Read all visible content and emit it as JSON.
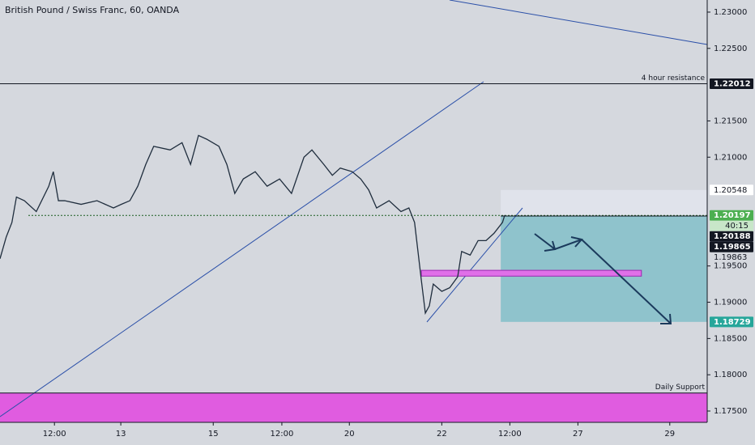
{
  "chart_data": {
    "type": "line",
    "title": "British Pound / Swiss Franc, 60, OANDA",
    "xlim": [
      0,
      124.7
    ],
    "xticks": [
      {
        "value": 9.6,
        "label": "12:00"
      },
      {
        "value": 21.3,
        "label": "13"
      },
      {
        "value": 37.6,
        "label": "15"
      },
      {
        "value": 49.7,
        "label": "12:00"
      },
      {
        "value": 61.6,
        "label": "20"
      },
      {
        "value": 77.9,
        "label": "22"
      },
      {
        "value": 89.9,
        "label": "12:00"
      },
      {
        "value": 101.9,
        "label": "27"
      },
      {
        "value": 118.1,
        "label": "29"
      }
    ],
    "ylim": [
      1.17344,
      1.23167
    ],
    "yticks": [
      {
        "value": 1.23,
        "label": "1.23000"
      },
      {
        "value": 1.225,
        "label": "1.22500"
      },
      {
        "value": 1.215,
        "label": "1.21500"
      },
      {
        "value": 1.21,
        "label": "1.21000"
      },
      {
        "value": 1.195,
        "label": "1.19500"
      },
      {
        "value": 1.19,
        "label": "1.19000"
      },
      {
        "value": 1.185,
        "label": "1.18500"
      },
      {
        "value": 1.18,
        "label": "1.18000"
      },
      {
        "value": 1.175,
        "label": "1.17500"
      }
    ],
    "series": [
      {
        "color": "#1f2d3d",
        "x": [
          0,
          1.1,
          2.1,
          2.9,
          4.3,
          6.4,
          8.6,
          9.4,
          10.3,
          11.4,
          14.3,
          17.1,
          20,
          21.4,
          22.9,
          24.3,
          25.7,
          27.1,
          30,
          32.1,
          33.6,
          35,
          36.4,
          38.6,
          40,
          41.4,
          42.9,
          45,
          47.1,
          49.3,
          51.4,
          53.6,
          55,
          57.1,
          58.6,
          60,
          62.1,
          63.6,
          65,
          66.4,
          68.6,
          70.7,
          72.1,
          73.1,
          73.7,
          74.3,
          75,
          75.7,
          76.4,
          77.9,
          79.3,
          80.7,
          81.4,
          82.9,
          84.3,
          85.7,
          87.1,
          88.6,
          89
        ],
        "values": [
          1.196,
          1.199,
          1.201,
          1.2045,
          1.204,
          1.2025,
          1.206,
          1.208,
          1.204,
          1.204,
          1.2035,
          1.204,
          1.203,
          1.2035,
          1.204,
          1.206,
          1.209,
          1.2115,
          1.211,
          1.212,
          1.209,
          1.213,
          1.2125,
          1.2115,
          1.209,
          1.205,
          1.207,
          1.208,
          1.206,
          1.207,
          1.205,
          1.21,
          1.211,
          1.209,
          1.2075,
          1.2085,
          1.208,
          1.207,
          1.2055,
          1.203,
          1.204,
          1.2025,
          1.203,
          1.201,
          1.197,
          1.193,
          1.1885,
          1.1895,
          1.1925,
          1.1915,
          1.192,
          1.1935,
          1.197,
          1.1965,
          1.1985,
          1.1985,
          1.1995,
          1.201,
          1.202
        ]
      }
    ],
    "levels": [
      {
        "value": 1.22012,
        "color": "#131722",
        "from": 0,
        "dash": false,
        "annotation": "4 hour resistance"
      },
      {
        "value": 1.20197,
        "color": "#1b5e20",
        "from": 5,
        "dash": true
      },
      {
        "value": 1.20188,
        "color": "#131722",
        "from": 88.3,
        "dash": false
      },
      {
        "value": 1.17749,
        "color": "#131722",
        "from": 0,
        "dash": false,
        "annotation": "Daily Support"
      }
    ],
    "zones": [
      {
        "x": [
          88.3,
          124.7
        ],
        "y": [
          1.20548,
          1.20188
        ],
        "color": "#e0e3eb"
      },
      {
        "x": [
          88.3,
          124.7
        ],
        "y": [
          1.20188,
          1.18729
        ],
        "color": "#8fc3cc"
      },
      {
        "x": [
          0,
          124.7
        ],
        "y": [
          1.17749,
          1.17344
        ],
        "color": "#e05ce0"
      },
      {
        "x": [
          74.3,
          113.1
        ],
        "y": [
          1.1944,
          1.1936
        ],
        "color": "#e070e8"
      }
    ],
    "price_labels": [
      {
        "value": 1.22012,
        "background": "#131722",
        "color": "#ffffff"
      },
      {
        "value": 1.20548,
        "background": "#ffffff",
        "color": "#131722"
      },
      {
        "value": 1.20197,
        "background": "#4caf50",
        "color": "#ffffff",
        "countdown": "40:15"
      },
      {
        "value": 1.20188,
        "background": "#131722",
        "color": "#ffffff"
      },
      {
        "value": 1.19865,
        "background": "#131722",
        "color": "#ffffff"
      },
      {
        "value": 1.19863,
        "background": "none",
        "color": "#131722"
      },
      {
        "value": 1.18729,
        "background": "#26a69a",
        "color": "#ffffff"
      }
    ]
  }
}
